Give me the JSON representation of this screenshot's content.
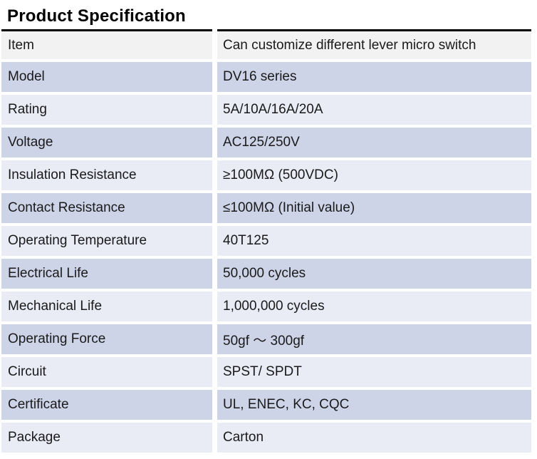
{
  "page": {
    "title": "Product Specification"
  },
  "colors": {
    "gray": "#f2f2f2",
    "dark": "#ced4e8",
    "light": "#e9ebf5",
    "rule": "#000000",
    "text": "#1a1a1a",
    "row_gap": "#ffffff"
  },
  "table": {
    "rows": [
      {
        "label": "Item",
        "value": "Can customize different lever micro switch",
        "shade": "gray"
      },
      {
        "label": "Model",
        "value": "DV16 series",
        "shade": "dark"
      },
      {
        "label": "Rating",
        "value": "5A/10A/16A/20A",
        "shade": "light"
      },
      {
        "label": "Voltage",
        "value": "AC125/250V",
        "shade": "dark"
      },
      {
        "label": "Insulation Resistance",
        "value": "≥100MΩ (500VDC)",
        "shade": "light"
      },
      {
        "label": "Contact Resistance",
        "value": "≤100MΩ (Initial value)",
        "shade": "dark"
      },
      {
        "label": "Operating Temperature",
        "value": "40T125",
        "shade": "light"
      },
      {
        "label": "Electrical Life",
        "value": "50,000 cycles",
        "shade": "dark"
      },
      {
        "label": "Mechanical Life",
        "value": "1,000,000 cycles",
        "shade": "light"
      },
      {
        "label": "Operating Force",
        "value": "50gf ～ 300gf",
        "shade": "dark"
      },
      {
        "label": "Circuit",
        "value": "SPST/ SPDT",
        "shade": "light"
      },
      {
        "label": "Certificate",
        "value": "UL, ENEC, KC, CQC",
        "shade": "dark"
      },
      {
        "label": "Package",
        "value": "Carton",
        "shade": "light"
      }
    ]
  }
}
